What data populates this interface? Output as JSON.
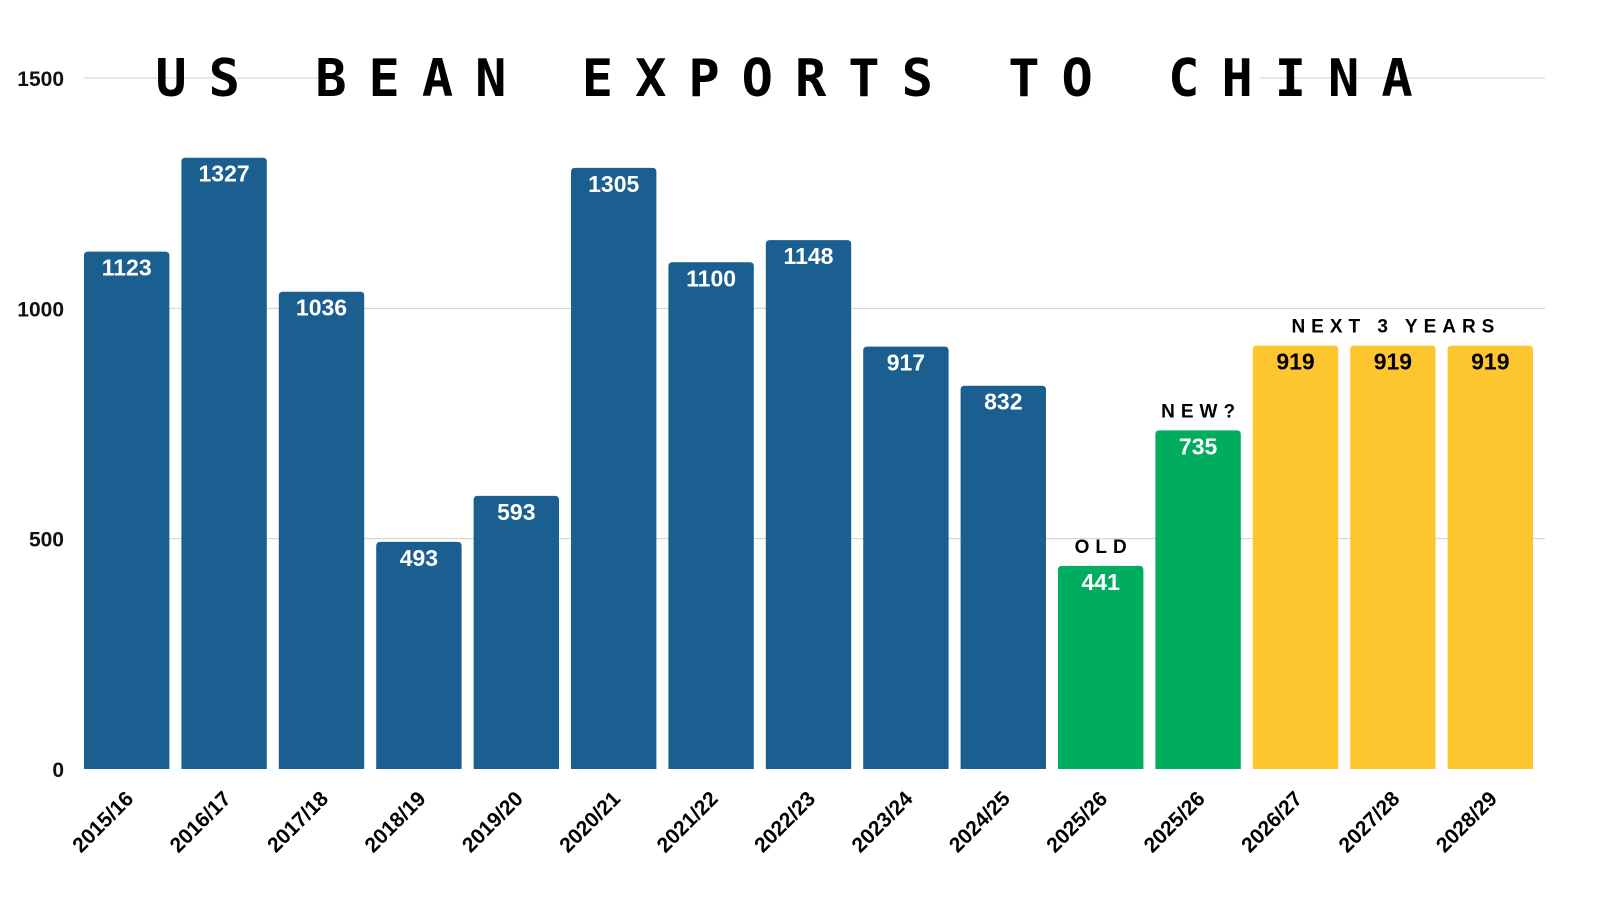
{
  "chart_data": {
    "type": "bar",
    "title": "US BEAN EXPORTS TO CHINA",
    "xlabel": "",
    "ylabel": "",
    "ylim": [
      0,
      1500
    ],
    "yticks": [
      0,
      500,
      1000,
      1500
    ],
    "grid": true,
    "categories": [
      "2015/16",
      "2016/17",
      "2017/18",
      "2018/19",
      "2019/20",
      "2020/21",
      "2021/22",
      "2022/23",
      "2023/24",
      "2024/25",
      "2025/26",
      "2025/26",
      "2026/27",
      "2027/28",
      "2028/29"
    ],
    "values": [
      1123,
      1327,
      1036,
      493,
      593,
      1305,
      1100,
      1148,
      917,
      832,
      441,
      735,
      919,
      919,
      919
    ],
    "bar_groups": [
      "history",
      "history",
      "history",
      "history",
      "history",
      "history",
      "history",
      "history",
      "history",
      "history",
      "current",
      "current",
      "projection",
      "projection",
      "projection"
    ],
    "colors": {
      "history": "#1a5f90",
      "current": "#00ad5f",
      "projection": "#fdc52e",
      "grid": "#d0d0d0"
    },
    "annotations": [
      {
        "text": "OLD",
        "bar_index": 10
      },
      {
        "text": "NEW?",
        "bar_index": 11
      },
      {
        "text": "NEXT 3 YEARS",
        "bar_start": 12,
        "bar_end": 14
      }
    ]
  }
}
